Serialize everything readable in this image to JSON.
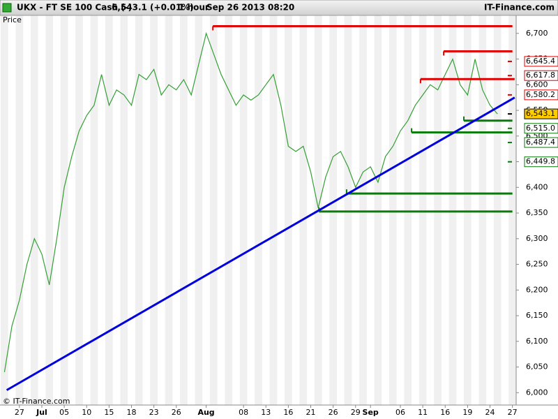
{
  "chart_data": {
    "type": "line",
    "header": {
      "instrument": "UKX - FT SE 100 Cash (-)",
      "quote": "6,543.1 (+0.01%)",
      "interval": "1 hour",
      "timestamp": "Sep 26 2013 08:20",
      "brand": "IT-Finance.com"
    },
    "y_label": "Price",
    "footer": "© IT-Finance.com",
    "color": "#33a033",
    "x": [
      -2,
      -1,
      0,
      1,
      2,
      3,
      4,
      5,
      6,
      7,
      8,
      9,
      10,
      11,
      12,
      13,
      14,
      15,
      16,
      17,
      18,
      19,
      20,
      21,
      22,
      23,
      24,
      25,
      26,
      27,
      28,
      29,
      30,
      31,
      32,
      33,
      34,
      35,
      36,
      37,
      38,
      39,
      40,
      41,
      42,
      43,
      44,
      45,
      46,
      47,
      48,
      49,
      50,
      51,
      52,
      53,
      54,
      55,
      56,
      57,
      58,
      59,
      60,
      61,
      62,
      63,
      64
    ],
    "values": [
      6040,
      6130,
      6180,
      6250,
      6300,
      6270,
      6210,
      6300,
      6400,
      6460,
      6510,
      6540,
      6560,
      6620,
      6560,
      6590,
      6580,
      6560,
      6620,
      6610,
      6630,
      6580,
      6600,
      6590,
      6610,
      6580,
      6640,
      6700,
      6660,
      6620,
      6590,
      6560,
      6580,
      6570,
      6580,
      6600,
      6620,
      6560,
      6480,
      6470,
      6480,
      6430,
      6360,
      6420,
      6460,
      6470,
      6440,
      6400,
      6430,
      6440,
      6410,
      6460,
      6480,
      6510,
      6530,
      6560,
      6580,
      6600,
      6590,
      6620,
      6650,
      6600,
      6580,
      6650,
      6590,
      6560,
      6543.1
    ],
    "trend": {
      "color": "#0000dd",
      "x": [
        -1.7,
        66.3
      ],
      "values": [
        6005,
        6575
      ]
    },
    "levels": [
      {
        "color": "#e00000",
        "x": [
          25.9,
          66
        ],
        "value": 6714
      },
      {
        "color": "#e00000",
        "x": [
          56.8,
          66
        ],
        "value": 6665
      },
      {
        "color": "#e00000",
        "x": [
          53.7,
          66.3
        ],
        "value": 6611
      },
      {
        "color": "#0a7a0a",
        "x": [
          59.5,
          66
        ],
        "value": 6530
      },
      {
        "color": "#0a7a0a",
        "x": [
          52.5,
          66
        ],
        "value": 6507
      },
      {
        "color": "#0a7a0a",
        "x": [
          43.8,
          66
        ],
        "value": 6388
      },
      {
        "color": "#0a7a0a",
        "x": [
          40.1,
          66
        ],
        "value": 6353
      }
    ],
    "price_labels": [
      {
        "value": 6645.4,
        "label": "6,645.4",
        "color": "#e00000"
      },
      {
        "value": 6617.8,
        "label": "6,617.8",
        "color": "#e00000"
      },
      {
        "value": 6580.2,
        "label": "6,580.2",
        "color": "#e00000"
      },
      {
        "value": 6543.1,
        "label": "6,543.1",
        "color": "#ffcc00"
      },
      {
        "value": 6515.0,
        "label": "6,515.0",
        "color": "#0a7a0a"
      },
      {
        "value": 6487.4,
        "label": "6,487.4",
        "color": "#0a7a0a"
      },
      {
        "value": 6449.8,
        "label": "6,449.8",
        "color": "#0a7a0a"
      }
    ],
    "xlim": [
      -2.6,
      66.5
    ],
    "xticks": [
      {
        "value": 0,
        "label": "27"
      },
      {
        "value": 3,
        "label": "Jul"
      },
      {
        "value": 6,
        "label": "05"
      },
      {
        "value": 9,
        "label": "10"
      },
      {
        "value": 12,
        "label": "15"
      },
      {
        "value": 15,
        "label": "18"
      },
      {
        "value": 18,
        "label": "23"
      },
      {
        "value": 21,
        "label": "26"
      },
      {
        "value": 25,
        "label": "Aug"
      },
      {
        "value": 30,
        "label": "08"
      },
      {
        "value": 33,
        "label": "13"
      },
      {
        "value": 36,
        "label": "16"
      },
      {
        "value": 39,
        "label": "21"
      },
      {
        "value": 42,
        "label": "26"
      },
      {
        "value": 45,
        "label": "29"
      },
      {
        "value": 47,
        "label": "Sep"
      },
      {
        "value": 51,
        "label": "06"
      },
      {
        "value": 54,
        "label": "11"
      },
      {
        "value": 57,
        "label": "16"
      },
      {
        "value": 60,
        "label": "19"
      },
      {
        "value": 63,
        "label": "24"
      },
      {
        "value": 66,
        "label": "27"
      }
    ],
    "ylim": [
      5980,
      6721.5
    ],
    "yticks": [
      {
        "value": 6000,
        "label": "6,000"
      },
      {
        "value": 6050,
        "label": "6,050"
      },
      {
        "value": 6100,
        "label": "6,100"
      },
      {
        "value": 6150,
        "label": "6,150"
      },
      {
        "value": 6200,
        "label": "6,200"
      },
      {
        "value": 6250,
        "label": "6,250"
      },
      {
        "value": 6300,
        "label": "6,300"
      },
      {
        "value": 6350,
        "label": "6,350"
      },
      {
        "value": 6400,
        "label": "6,400"
      },
      {
        "value": 6450,
        "label": "6,450"
      },
      {
        "value": 6500,
        "label": "6,500"
      },
      {
        "value": 6550,
        "label": "6,550"
      },
      {
        "value": 6600,
        "label": "6,600"
      },
      {
        "value": 6650,
        "label": "6,650"
      },
      {
        "value": 6700,
        "label": "6,700"
      }
    ]
  }
}
